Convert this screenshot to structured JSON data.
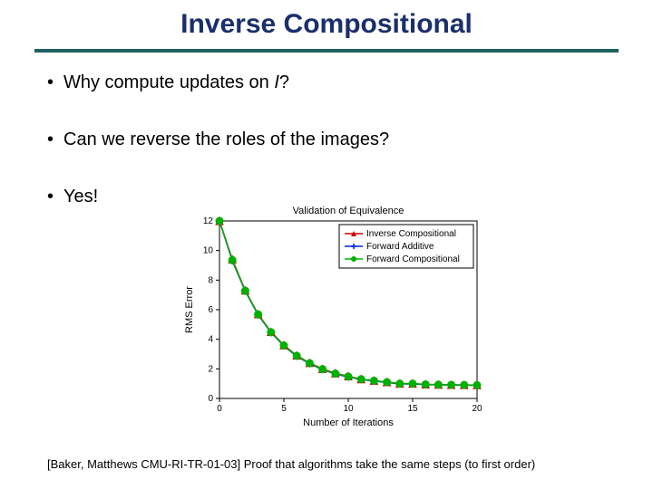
{
  "title": "Inverse Compositional",
  "bullets": [
    {
      "prefix": "Why compute updates on ",
      "ital": "I",
      "suffix": "?"
    },
    {
      "text": "Can we reverse the roles of the images?"
    },
    {
      "text": "Yes!"
    }
  ],
  "footnote": "[Baker, Matthews CMU-RI-TR-01-03] Proof that algorithms take the same steps (to first order)",
  "chart": {
    "type": "line",
    "title": "Validation of Equivalence",
    "xlabel": "Number of Iterations",
    "ylabel": "RMS Error",
    "xlim": [
      0,
      20
    ],
    "ylim": [
      0,
      12
    ],
    "xticks": [
      0,
      5,
      10,
      15,
      20
    ],
    "yticks": [
      0,
      2,
      4,
      6,
      8,
      10,
      12
    ],
    "background_color": "#ffffff",
    "axis_color": "#000000",
    "legend": {
      "position": "top-right",
      "border_color": "#000000",
      "bg": "#ffffff",
      "items": [
        {
          "label": "Inverse Compositional",
          "color": "#d00000",
          "marker": "triangle"
        },
        {
          "label": "Forward Additive",
          "color": "#0020d0",
          "marker": "cross"
        },
        {
          "label": "Forward Compositional",
          "color": "#00b000",
          "marker": "circle"
        }
      ]
    },
    "series": [
      {
        "name": "Inverse Compositional",
        "color": "#d00000",
        "marker": "triangle",
        "marker_size": 4,
        "line_width": 1.5,
        "x": [
          0,
          1,
          2,
          3,
          4,
          5,
          6,
          7,
          8,
          9,
          10,
          11,
          12,
          13,
          14,
          15,
          16,
          17,
          18,
          19,
          20
        ],
        "y": [
          12.0,
          9.4,
          7.3,
          5.7,
          4.5,
          3.6,
          2.9,
          2.4,
          2.0,
          1.7,
          1.5,
          1.3,
          1.2,
          1.1,
          1.0,
          1.0,
          0.95,
          0.93,
          0.92,
          0.91,
          0.9
        ]
      },
      {
        "name": "Forward Additive",
        "color": "#0020d0",
        "marker": "cross",
        "marker_size": 4,
        "line_width": 1.5,
        "x": [
          0,
          1,
          2,
          3,
          4,
          5,
          6,
          7,
          8,
          9,
          10,
          11,
          12,
          13,
          14,
          15,
          16,
          17,
          18,
          19,
          20
        ],
        "y": [
          12.0,
          9.3,
          7.25,
          5.65,
          4.45,
          3.55,
          2.85,
          2.35,
          1.95,
          1.65,
          1.45,
          1.28,
          1.18,
          1.08,
          0.98,
          0.98,
          0.93,
          0.92,
          0.91,
          0.9,
          0.89
        ]
      },
      {
        "name": "Forward Compositional",
        "color": "#00b000",
        "marker": "circle",
        "marker_size": 4,
        "line_width": 1.5,
        "x": [
          0,
          1,
          2,
          3,
          4,
          5,
          6,
          7,
          8,
          9,
          10,
          11,
          12,
          13,
          14,
          15,
          16,
          17,
          18,
          19,
          20
        ],
        "y": [
          12.0,
          9.35,
          7.28,
          5.68,
          4.48,
          3.58,
          2.88,
          2.38,
          1.98,
          1.68,
          1.48,
          1.3,
          1.2,
          1.1,
          1.0,
          1.0,
          0.95,
          0.93,
          0.92,
          0.91,
          0.9
        ]
      }
    ]
  }
}
